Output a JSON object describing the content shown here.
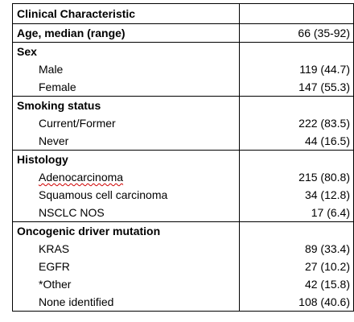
{
  "title": {
    "label": "Clinical Characteristic",
    "value": ""
  },
  "age": {
    "label": "Age, median (range)",
    "value": "66 (35-92)"
  },
  "sections": [
    {
      "header": "Sex",
      "rows": [
        {
          "label": "Male",
          "value": "119 (44.7)"
        },
        {
          "label": "Female",
          "value": "147 (55.3)"
        }
      ]
    },
    {
      "header": "Smoking status",
      "rows": [
        {
          "label": "Current/Former",
          "value": "222 (83.5)"
        },
        {
          "label": "Never",
          "value": "44 (16.5)"
        }
      ]
    },
    {
      "header": "Histology",
      "rows": [
        {
          "label": "Adenocarcinoma",
          "value": "215 (80.8)"
        },
        {
          "label": "Squamous cell carcinoma",
          "value": "34 (12.8)"
        },
        {
          "label": "NSCLC NOS",
          "value": "17 (6.4)"
        }
      ]
    },
    {
      "header": "Oncogenic driver mutation",
      "rows": [
        {
          "label": "KRAS",
          "value": "89 (33.4)"
        },
        {
          "label": "EGFR",
          "value": "27 (10.2)"
        },
        {
          "label": "*Other",
          "value": "42 (15.8)"
        },
        {
          "label": "None identified",
          "value": "108 (40.6)"
        }
      ]
    }
  ]
}
